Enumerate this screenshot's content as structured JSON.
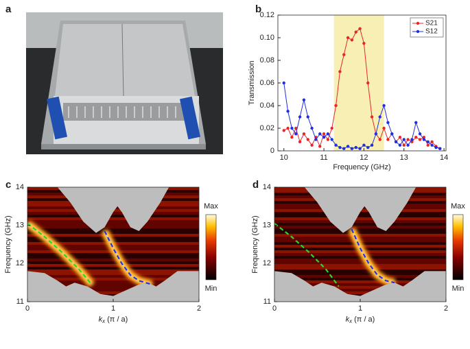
{
  "panel_labels": [
    "a",
    "b",
    "c",
    "d"
  ],
  "chart_data": [
    {
      "type": "line",
      "xlabel": "Frequency (GHz)",
      "ylabel": "Transmission",
      "xlim": [
        9.85,
        14.05
      ],
      "ylim": [
        0,
        0.12
      ],
      "xticks": [
        10,
        11,
        12,
        13,
        14
      ],
      "yticks": [
        0,
        0.02,
        0.04,
        0.06,
        0.08,
        {
          "value": 0.1,
          "label": "0.10"
        },
        0.12
      ],
      "shaded_x": [
        11.25,
        12.5
      ],
      "shade_color": "#f7efb4",
      "legend": "upper right",
      "x": [
        10,
        10.1,
        10.2,
        10.3,
        10.4,
        10.5,
        10.6,
        10.7,
        10.8,
        10.9,
        11,
        11.1,
        11.2,
        11.3,
        11.4,
        11.5,
        11.6,
        11.7,
        11.8,
        11.9,
        12,
        12.1,
        12.2,
        12.3,
        12.4,
        12.5,
        12.6,
        12.7,
        12.8,
        12.9,
        13,
        13.1,
        13.2,
        13.3,
        13.4,
        13.5,
        13.6,
        13.7,
        13.8,
        13.9
      ],
      "series": [
        {
          "name": "S21",
          "color": "#e8262a",
          "values": [
            0.018,
            0.02,
            0.012,
            0.02,
            0.008,
            0.015,
            0.01,
            0.005,
            0.012,
            0.004,
            0.015,
            0.01,
            0.02,
            0.04,
            0.07,
            0.085,
            0.1,
            0.098,
            0.105,
            0.108,
            0.095,
            0.06,
            0.03,
            0.015,
            0.01,
            0.02,
            0.01,
            0.015,
            0.008,
            0.012,
            0.005,
            0.01,
            0.008,
            0.012,
            0.01,
            0.012,
            0.005,
            0.008,
            0.004,
            0.002
          ]
        },
        {
          "name": "S12",
          "color": "#1f2fe0",
          "values": [
            0.06,
            0.035,
            0.02,
            0.015,
            0.03,
            0.045,
            0.03,
            0.02,
            0.01,
            0.015,
            0.012,
            0.015,
            0.01,
            0.005,
            0.003,
            0.002,
            0.004,
            0.002,
            0.003,
            0.002,
            0.005,
            0.003,
            0.005,
            0.015,
            0.03,
            0.04,
            0.025,
            0.015,
            0.008,
            0.005,
            0.01,
            0.005,
            0.01,
            0.025,
            0.015,
            0.01,
            0.008,
            0.005,
            0.003,
            0.002
          ]
        }
      ]
    },
    {
      "type": "heatmap",
      "xlabel_symbol": "k",
      "xlabel_subscript": "x",
      "xlabel_unit": "(π / a)",
      "ylabel": "Frequency (GHz)",
      "xlim": [
        0,
        2
      ],
      "ylim": [
        11,
        14
      ],
      "xticks": [
        0,
        1,
        2
      ],
      "yticks": [
        11,
        12,
        13,
        14
      ],
      "colorbar": {
        "max_label": "Max",
        "min_label": "Min"
      },
      "series": [
        {
          "color": "#22dd22",
          "glow": true,
          "x": [
            0,
            0.2,
            0.4,
            0.6,
            0.75
          ],
          "values": [
            13.05,
            12.7,
            12.3,
            11.85,
            11.45
          ]
        },
        {
          "color": "#2233ee",
          "glow": true,
          "x": [
            0.9,
            1.0,
            1.1,
            1.2,
            1.3,
            1.45
          ],
          "values": [
            12.85,
            12.4,
            12.0,
            11.7,
            11.55,
            11.45
          ]
        }
      ]
    },
    {
      "type": "heatmap",
      "xlabel_symbol": "k",
      "xlabel_subscript": "x",
      "xlabel_unit": "(π / a)",
      "ylabel": "Frequency (GHz)",
      "xlim": [
        0,
        2
      ],
      "ylim": [
        11,
        14
      ],
      "xticks": [
        0,
        1,
        2
      ],
      "yticks": [
        11,
        12,
        13,
        14
      ],
      "colorbar": {
        "max_label": "Max",
        "min_label": "Min"
      },
      "series": [
        {
          "color": "#22dd22",
          "glow": false,
          "x": [
            0,
            0.2,
            0.4,
            0.6,
            0.75
          ],
          "values": [
            13.05,
            12.7,
            12.3,
            11.85,
            11.4
          ]
        },
        {
          "color": "#2233ee",
          "glow": true,
          "x": [
            0.9,
            1.0,
            1.1,
            1.2,
            1.3,
            1.4
          ],
          "values": [
            12.9,
            12.4,
            12.0,
            11.7,
            11.55,
            11.5
          ]
        }
      ]
    }
  ]
}
